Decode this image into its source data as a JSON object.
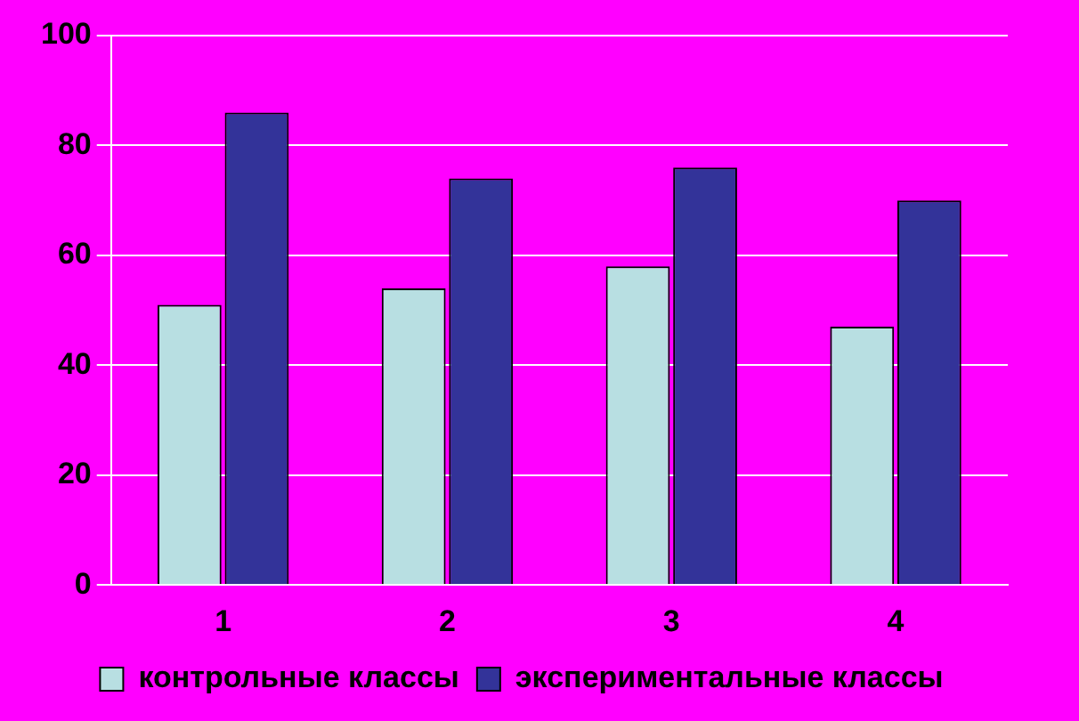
{
  "chart_data": {
    "type": "bar",
    "categories": [
      "1",
      "2",
      "3",
      "4"
    ],
    "series": [
      {
        "name": "контрольные классы",
        "color": "#b8dfe2",
        "values": [
          51,
          54,
          58,
          47
        ]
      },
      {
        "name": "экспериментальные классы",
        "color": "#333399",
        "values": [
          86,
          74,
          76,
          70
        ]
      }
    ],
    "ylim": [
      0,
      100
    ],
    "yticks": [
      0,
      20,
      40,
      60,
      80,
      100
    ],
    "grid": "y",
    "legend": "bottom"
  }
}
